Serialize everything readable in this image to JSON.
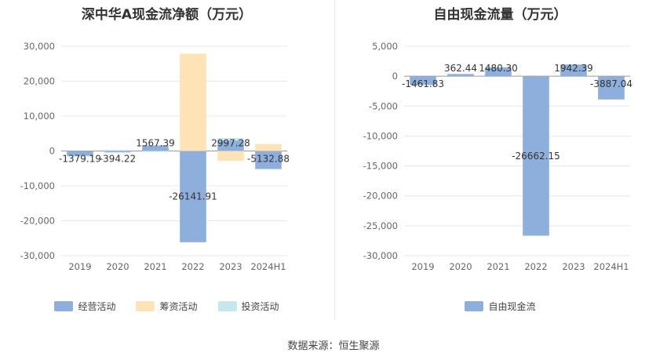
{
  "source_text": "数据来源：恒生聚源",
  "chart_data": [
    {
      "type": "bar",
      "stacked": true,
      "title": "深中华A现金流净额（万元）",
      "categories": [
        "2019",
        "2020",
        "2021",
        "2022",
        "2023",
        "2024H1"
      ],
      "yticks": [
        "30,000",
        "20,000",
        "10,000",
        "0",
        "-10,000",
        "-20,000",
        "-30,000"
      ],
      "ylim": [
        -30000,
        30000
      ],
      "grid": true,
      "legend_position": "bottom",
      "series": [
        {
          "name": "经营活动",
          "color": "#8eaedb",
          "values": [
            -1379.19,
            -394.22,
            1567.39,
            -26141.91,
            2997.28,
            -5132.88
          ],
          "labels": [
            "-1379.19",
            "-394.22",
            "1567.39",
            "-26141.91",
            "2997.28",
            "-5132.88"
          ]
        },
        {
          "name": "筹资活动",
          "color": "#fde3b5",
          "values": [
            0,
            0,
            0,
            27900,
            -2800,
            2000
          ],
          "labels": []
        },
        {
          "name": "投资活动",
          "color": "#c5e8ec",
          "values": [
            -150,
            300,
            -200,
            0,
            700,
            -100
          ],
          "labels": []
        }
      ]
    },
    {
      "type": "bar",
      "title": "自由现金流量（万元）",
      "categories": [
        "2019",
        "2020",
        "2021",
        "2022",
        "2023",
        "2024H1"
      ],
      "yticks": [
        "5,000",
        "0",
        "-5,000",
        "-10,000",
        "-15,000",
        "-20,000",
        "-25,000",
        "-30,000"
      ],
      "ylim": [
        -30000,
        5000
      ],
      "grid": true,
      "legend_position": "bottom",
      "series": [
        {
          "name": "自由现金流",
          "color": "#8eaedb",
          "values": [
            -1461.83,
            362.44,
            1480.3,
            -26662.15,
            1942.39,
            -3887.04
          ],
          "labels": [
            "-1461.83",
            "362.44",
            "1480.30",
            "-26662.15",
            "1942.39",
            "-3887.04"
          ]
        }
      ]
    }
  ]
}
